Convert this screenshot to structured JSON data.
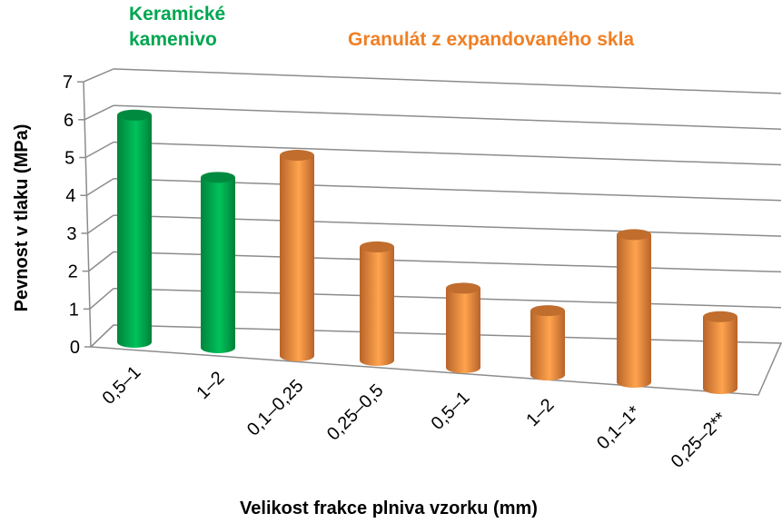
{
  "chart_data": {
    "type": "bar",
    "style": "3d-cylinder",
    "categories": [
      "0,5–1",
      "1–2",
      "0,1–0,25",
      "0,25–0,5",
      "0,5–1",
      "1–2",
      "0,1–1*",
      "0,25–2**"
    ],
    "values": [
      6.0,
      4.5,
      5.3,
      3.0,
      2.1,
      1.7,
      3.9,
      1.9
    ],
    "bar_groups": [
      "ceramic",
      "ceramic",
      "glass",
      "glass",
      "glass",
      "glass",
      "glass",
      "glass"
    ],
    "group_labels": {
      "ceramic": [
        "Keramické",
        "kamenivo"
      ],
      "glass": "Granulát z expandovaného skla"
    },
    "colors": {
      "ceramic": "#00b050",
      "glass": "#f79646",
      "ceramic_text": "#00a650",
      "glass_text": "#f07f24"
    },
    "xlabel": "Velikost frakce plniva vzorku (mm)",
    "ylabel": "Pevnost v tlaku (MPa)",
    "ylim": [
      0,
      7
    ],
    "yticks": [
      "0",
      "1",
      "2",
      "3",
      "4",
      "5",
      "6",
      "7"
    ],
    "grid": true
  }
}
